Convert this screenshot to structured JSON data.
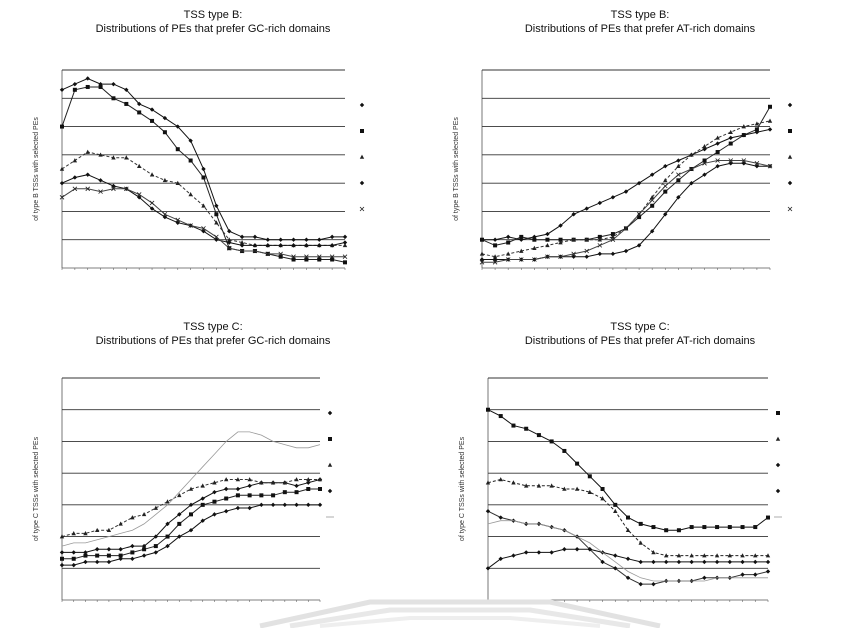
{
  "chart_data": [
    {
      "type": "line",
      "title": "TSS type B:",
      "subtitle": "Distributions of PEs that prefer GC-rich domains",
      "ylabel": "of type B TSSs with selected PEs",
      "x": [
        1,
        2,
        3,
        4,
        5,
        6,
        7,
        8,
        9,
        10,
        11,
        12,
        13,
        14,
        15,
        16,
        17,
        18,
        19,
        20,
        21,
        22,
        23
      ],
      "ylim": [
        0,
        7
      ],
      "series": [
        {
          "marker": "diamond",
          "dash": "",
          "values": [
            6.3,
            6.5,
            6.7,
            6.5,
            6.5,
            6.3,
            5.8,
            5.6,
            5.3,
            5.0,
            4.5,
            3.5,
            2.2,
            1.3,
            1.1,
            1.1,
            1.0,
            1.0,
            1.0,
            1.0,
            1.0,
            1.1,
            1.1
          ]
        },
        {
          "marker": "square",
          "dash": "",
          "values": [
            5.0,
            6.3,
            6.4,
            6.4,
            6.0,
            5.8,
            5.5,
            5.2,
            4.8,
            4.2,
            3.8,
            3.2,
            1.9,
            0.7,
            0.6,
            0.6,
            0.5,
            0.4,
            0.3,
            0.3,
            0.3,
            0.3,
            0.2
          ]
        },
        {
          "marker": "triangle",
          "dash": "3,2",
          "values": [
            3.5,
            3.8,
            4.1,
            4.0,
            3.9,
            3.9,
            3.6,
            3.3,
            3.1,
            3.0,
            2.6,
            2.2,
            1.6,
            1.0,
            0.9,
            0.8,
            0.8,
            0.8,
            0.8,
            0.8,
            0.8,
            0.8,
            0.8
          ]
        },
        {
          "marker": "diamond",
          "dash": "",
          "values": [
            3.0,
            3.2,
            3.3,
            3.1,
            2.9,
            2.8,
            2.5,
            2.1,
            1.8,
            1.6,
            1.5,
            1.3,
            1.0,
            0.9,
            0.8,
            0.8,
            0.8,
            0.8,
            0.8,
            0.8,
            0.8,
            0.8,
            0.9
          ]
        },
        {
          "marker": "x",
          "dash": "",
          "values": [
            2.5,
            2.8,
            2.8,
            2.7,
            2.8,
            2.8,
            2.6,
            2.3,
            1.9,
            1.7,
            1.5,
            1.4,
            1.1,
            0.7,
            0.6,
            0.6,
            0.5,
            0.5,
            0.4,
            0.4,
            0.4,
            0.4,
            0.4
          ]
        }
      ]
    },
    {
      "type": "line",
      "title": "TSS type B:",
      "subtitle": "Distributions of PEs that prefer AT-rich domains",
      "ylabel": "of type B TSSs with selected PEs",
      "x": [
        1,
        2,
        3,
        4,
        5,
        6,
        7,
        8,
        9,
        10,
        11,
        12,
        13,
        14,
        15,
        16,
        17,
        18,
        19,
        20,
        21,
        22,
        23
      ],
      "ylim": [
        0,
        7
      ],
      "series": [
        {
          "marker": "diamond",
          "dash": "",
          "values": [
            1.0,
            1.0,
            1.1,
            1.0,
            1.1,
            1.2,
            1.5,
            1.9,
            2.1,
            2.3,
            2.5,
            2.7,
            3.0,
            3.3,
            3.6,
            3.8,
            4.0,
            4.2,
            4.4,
            4.6,
            4.7,
            4.8,
            4.9
          ]
        },
        {
          "marker": "square",
          "dash": "",
          "values": [
            1.0,
            0.8,
            0.9,
            1.1,
            1.0,
            1.0,
            1.0,
            1.0,
            1.0,
            1.1,
            1.2,
            1.4,
            1.8,
            2.2,
            2.7,
            3.1,
            3.5,
            3.8,
            4.1,
            4.4,
            4.7,
            4.9,
            5.7
          ]
        },
        {
          "marker": "triangle",
          "dash": "3,2",
          "values": [
            0.5,
            0.4,
            0.5,
            0.6,
            0.7,
            0.8,
            0.9,
            1.0,
            1.0,
            1.0,
            1.1,
            1.4,
            1.9,
            2.5,
            3.1,
            3.6,
            4.0,
            4.3,
            4.6,
            4.8,
            5.0,
            5.1,
            5.2
          ]
        },
        {
          "marker": "diamond",
          "dash": "",
          "values": [
            0.3,
            0.3,
            0.3,
            0.3,
            0.3,
            0.4,
            0.4,
            0.4,
            0.4,
            0.5,
            0.5,
            0.6,
            0.8,
            1.3,
            1.9,
            2.5,
            3.0,
            3.3,
            3.6,
            3.7,
            3.7,
            3.6,
            3.6
          ]
        },
        {
          "marker": "x",
          "dash": "",
          "values": [
            0.2,
            0.2,
            0.3,
            0.3,
            0.3,
            0.4,
            0.4,
            0.5,
            0.6,
            0.8,
            1.0,
            1.4,
            1.9,
            2.4,
            2.9,
            3.3,
            3.5,
            3.7,
            3.8,
            3.8,
            3.8,
            3.7,
            3.6
          ]
        }
      ]
    },
    {
      "type": "line",
      "title": "TSS type C:",
      "subtitle": "Distributions of PEs that prefer GC-rich domains",
      "ylabel": "of type C TSSs with selected PEs",
      "x": [
        1,
        2,
        3,
        4,
        5,
        6,
        7,
        8,
        9,
        10,
        11,
        12,
        13,
        14,
        15,
        16,
        17,
        18,
        19,
        20,
        21,
        22,
        23
      ],
      "ylim": [
        0,
        7
      ],
      "series": [
        {
          "marker": "diamond",
          "dash": "",
          "values": [
            1.5,
            1.5,
            1.5,
            1.6,
            1.6,
            1.6,
            1.7,
            1.7,
            2.0,
            2.4,
            2.7,
            3.0,
            3.2,
            3.4,
            3.5,
            3.5,
            3.6,
            3.7,
            3.7,
            3.7,
            3.6,
            3.7,
            3.8
          ]
        },
        {
          "marker": "square",
          "dash": "",
          "values": [
            1.3,
            1.3,
            1.4,
            1.4,
            1.4,
            1.4,
            1.5,
            1.6,
            1.7,
            2.0,
            2.4,
            2.7,
            3.0,
            3.1,
            3.2,
            3.3,
            3.3,
            3.3,
            3.3,
            3.4,
            3.4,
            3.5,
            3.5
          ]
        },
        {
          "marker": "triangle",
          "dash": "3,2",
          "values": [
            2.0,
            2.1,
            2.1,
            2.2,
            2.2,
            2.4,
            2.6,
            2.7,
            2.9,
            3.1,
            3.3,
            3.5,
            3.6,
            3.7,
            3.8,
            3.8,
            3.8,
            3.7,
            3.7,
            3.7,
            3.8,
            3.8,
            3.8
          ]
        },
        {
          "marker": "diamond",
          "dash": "",
          "values": [
            1.1,
            1.1,
            1.2,
            1.2,
            1.2,
            1.3,
            1.3,
            1.4,
            1.5,
            1.7,
            2.0,
            2.2,
            2.5,
            2.7,
            2.8,
            2.9,
            2.9,
            3.0,
            3.0,
            3.0,
            3.0,
            3.0,
            3.0
          ]
        },
        {
          "marker": "none",
          "dash": "",
          "values": [
            1.7,
            1.8,
            1.8,
            1.9,
            2.0,
            2.1,
            2.2,
            2.4,
            2.7,
            3.0,
            3.4,
            3.8,
            4.2,
            4.6,
            5.0,
            5.3,
            5.3,
            5.2,
            5.0,
            4.9,
            4.8,
            4.8,
            4.9
          ]
        }
      ]
    },
    {
      "type": "line",
      "title": "TSS type C:",
      "subtitle": "Distributions of PEs that prefer AT-rich domains",
      "ylabel": "of type C TSSs with selected PEs",
      "x": [
        1,
        2,
        3,
        4,
        5,
        6,
        7,
        8,
        9,
        10,
        11,
        12,
        13,
        14,
        15,
        16,
        17,
        18,
        19,
        20,
        21,
        22,
        23
      ],
      "ylim": [
        0,
        7
      ],
      "series": [
        {
          "marker": "square",
          "dash": "",
          "values": [
            6.0,
            5.8,
            5.5,
            5.4,
            5.2,
            5.0,
            4.7,
            4.3,
            3.9,
            3.5,
            3.0,
            2.6,
            2.4,
            2.3,
            2.2,
            2.2,
            2.3,
            2.3,
            2.3,
            2.3,
            2.3,
            2.3,
            2.6
          ]
        },
        {
          "marker": "triangle",
          "dash": "3,2",
          "values": [
            3.7,
            3.8,
            3.7,
            3.6,
            3.6,
            3.6,
            3.5,
            3.5,
            3.4,
            3.2,
            2.8,
            2.2,
            1.8,
            1.5,
            1.4,
            1.4,
            1.4,
            1.4,
            1.4,
            1.4,
            1.4,
            1.4,
            1.4
          ]
        },
        {
          "marker": "diamond",
          "dash": "",
          "values": [
            2.8,
            2.6,
            2.5,
            2.4,
            2.4,
            2.3,
            2.2,
            2.0,
            1.6,
            1.2,
            1.0,
            0.7,
            0.5,
            0.5,
            0.6,
            0.6,
            0.6,
            0.7,
            0.7,
            0.7,
            0.8,
            0.8,
            0.9
          ]
        },
        {
          "marker": "diamond",
          "dash": "",
          "values": [
            1.0,
            1.3,
            1.4,
            1.5,
            1.5,
            1.5,
            1.6,
            1.6,
            1.6,
            1.5,
            1.4,
            1.3,
            1.2,
            1.2,
            1.2,
            1.2,
            1.2,
            1.2,
            1.2,
            1.2,
            1.2,
            1.2,
            1.2
          ]
        },
        {
          "marker": "none",
          "dash": "",
          "values": [
            2.4,
            2.5,
            2.5,
            2.4,
            2.4,
            2.3,
            2.2,
            2.0,
            1.8,
            1.5,
            1.2,
            0.9,
            0.7,
            0.6,
            0.6,
            0.6,
            0.6,
            0.6,
            0.7,
            0.7,
            0.7,
            0.7,
            0.7
          ]
        }
      ]
    }
  ]
}
